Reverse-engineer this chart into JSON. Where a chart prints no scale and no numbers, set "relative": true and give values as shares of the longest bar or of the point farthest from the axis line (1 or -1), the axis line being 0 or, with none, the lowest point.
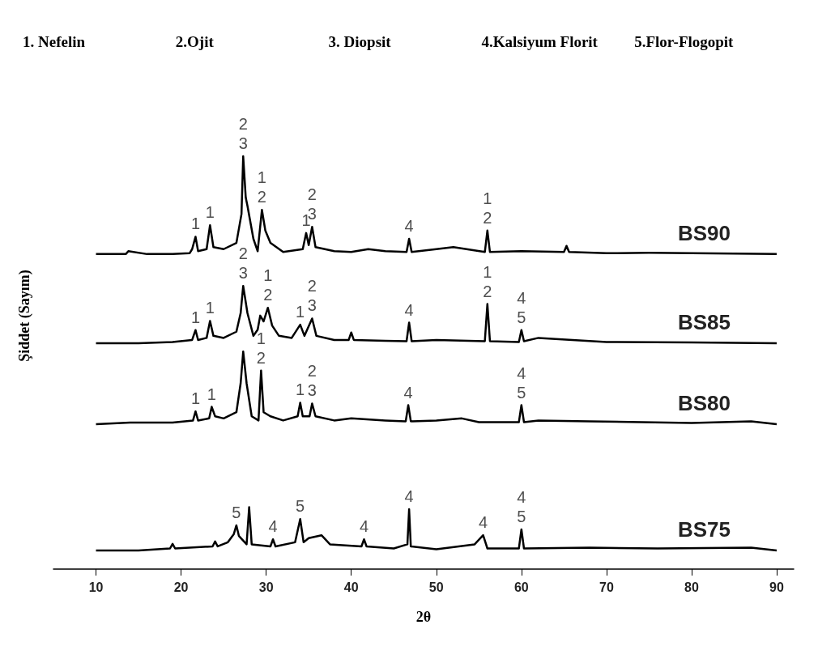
{
  "chart_data": {
    "type": "line",
    "relative": true,
    "xlabel": "2θ",
    "ylabel": "Şiddet (Sayım)",
    "xlim": [
      5,
      92
    ],
    "xticks": [
      10,
      20,
      30,
      40,
      50,
      60,
      70,
      80,
      90
    ],
    "grid": false,
    "legend": false,
    "marker": "none",
    "line_style": "solid",
    "series": [
      {
        "name": "BS90",
        "color": "#000000",
        "x": [
          10,
          13.5,
          13.8,
          16,
          19,
          21,
          21.3,
          21.7,
          22,
          23,
          23.4,
          23.8,
          25,
          26.5,
          27.1,
          27.3,
          27.6,
          27.8,
          28.5,
          29,
          29.5,
          29.9,
          30.5,
          32,
          34.3,
          34.7,
          35,
          35.4,
          35.8,
          38,
          40,
          42,
          44,
          46.5,
          46.8,
          47.1,
          50,
          52,
          55.7,
          56,
          56.3,
          60,
          65,
          65.3,
          65.6,
          70,
          75,
          80,
          85,
          90
        ],
        "values": [
          0.763,
          0.763,
          0.77,
          0.763,
          0.763,
          0.765,
          0.775,
          0.805,
          0.77,
          0.775,
          0.833,
          0.78,
          0.775,
          0.79,
          0.86,
          1.0,
          0.9,
          0.88,
          0.8,
          0.77,
          0.87,
          0.82,
          0.79,
          0.768,
          0.775,
          0.814,
          0.785,
          0.829,
          0.78,
          0.77,
          0.768,
          0.775,
          0.77,
          0.768,
          0.8,
          0.768,
          0.775,
          0.78,
          0.768,
          0.82,
          0.768,
          0.77,
          0.768,
          0.783,
          0.768,
          0.765,
          0.766,
          0.765,
          0.764,
          0.763
        ]
      },
      {
        "name": "BS85",
        "color": "#000000",
        "x": [
          10,
          15,
          19,
          21.3,
          21.7,
          22,
          23,
          23.4,
          23.8,
          25,
          26.5,
          27,
          27.3,
          27.8,
          28.5,
          29,
          29.3,
          29.7,
          30.2,
          30.7,
          31.5,
          33,
          34,
          34.5,
          35.4,
          35.9,
          38,
          39.7,
          40,
          40.3,
          44,
          46.5,
          46.8,
          47.1,
          50,
          55.7,
          56,
          56.3,
          59.7,
          60,
          60.3,
          62,
          70,
          80,
          90
        ],
        "values": [
          0.547,
          0.547,
          0.55,
          0.555,
          0.579,
          0.555,
          0.56,
          0.601,
          0.565,
          0.56,
          0.575,
          0.62,
          0.686,
          0.62,
          0.565,
          0.58,
          0.614,
          0.6,
          0.633,
          0.59,
          0.565,
          0.56,
          0.592,
          0.565,
          0.607,
          0.565,
          0.555,
          0.555,
          0.573,
          0.555,
          0.553,
          0.552,
          0.597,
          0.552,
          0.555,
          0.552,
          0.642,
          0.552,
          0.55,
          0.579,
          0.552,
          0.56,
          0.55,
          0.549,
          0.547
        ]
      },
      {
        "name": "BS80",
        "color": "#000000",
        "x": [
          10,
          14,
          19,
          21.4,
          21.7,
          22,
          23.3,
          23.6,
          24,
          25,
          26.5,
          27,
          27.3,
          27.7,
          28.3,
          29.1,
          29.4,
          29.7,
          30.5,
          32,
          33.7,
          34,
          34.3,
          35.1,
          35.4,
          35.8,
          38,
          40,
          44,
          46.4,
          46.7,
          47,
          50,
          53,
          55,
          59.7,
          60,
          60.3,
          62,
          68,
          80,
          87,
          90
        ],
        "values": [
          0.351,
          0.355,
          0.355,
          0.36,
          0.382,
          0.36,
          0.365,
          0.393,
          0.37,
          0.365,
          0.38,
          0.45,
          0.527,
          0.45,
          0.37,
          0.36,
          0.481,
          0.38,
          0.37,
          0.36,
          0.37,
          0.403,
          0.37,
          0.37,
          0.401,
          0.37,
          0.36,
          0.365,
          0.36,
          0.358,
          0.397,
          0.358,
          0.36,
          0.365,
          0.356,
          0.356,
          0.397,
          0.356,
          0.36,
          0.358,
          0.354,
          0.358,
          0.351
        ]
      },
      {
        "name": "BS75",
        "color": "#000000",
        "x": [
          10,
          15,
          18.7,
          19,
          19.3,
          23.7,
          24,
          24.3,
          25.5,
          26.2,
          26.5,
          26.8,
          27.7,
          28,
          28.3,
          30.5,
          30.8,
          31.1,
          33.4,
          34,
          34.4,
          35,
          36.5,
          37.5,
          41.2,
          41.5,
          41.8,
          45,
          46.6,
          46.8,
          47,
          50,
          54.5,
          55.5,
          56,
          59.7,
          60,
          60.3,
          68,
          76,
          87,
          90
        ],
        "values": [
          0.045,
          0.045,
          0.05,
          0.061,
          0.05,
          0.055,
          0.067,
          0.055,
          0.065,
          0.085,
          0.106,
          0.08,
          0.06,
          0.15,
          0.06,
          0.055,
          0.072,
          0.055,
          0.065,
          0.121,
          0.065,
          0.075,
          0.082,
          0.06,
          0.055,
          0.072,
          0.055,
          0.05,
          0.06,
          0.145,
          0.055,
          0.048,
          0.06,
          0.082,
          0.05,
          0.05,
          0.096,
          0.05,
          0.052,
          0.05,
          0.052,
          0.045
        ]
      }
    ],
    "annotations": [
      "1. Nefelin",
      "2.Ojit",
      "3. Diopsit",
      "4.Kalsiyum Florit",
      "5.Flor-Flogopit",
      {
        "text": "1",
        "x": 21.7,
        "y": 0.805
      },
      {
        "text": "1",
        "x": 23.4,
        "y": 0.833
      },
      {
        "text": "2\n3",
        "x": 27.3,
        "y": 1.0
      },
      {
        "text": "1\n2",
        "x": 29.5,
        "y": 0.87
      },
      {
        "text": "1",
        "x": 34.7,
        "y": 0.814
      },
      {
        "text": "2\n3",
        "x": 35.4,
        "y": 0.829
      },
      {
        "text": "4",
        "x": 46.8,
        "y": 0.8
      },
      {
        "text": "1\n2",
        "x": 56,
        "y": 0.82
      },
      {
        "text": "1",
        "x": 21.7,
        "y": 0.579
      },
      {
        "text": "1",
        "x": 23.4,
        "y": 0.601
      },
      {
        "text": "2\n3",
        "x": 27.3,
        "y": 0.686
      },
      {
        "text": "1\n2",
        "x": 30.2,
        "y": 0.633
      },
      {
        "text": "1",
        "x": 34,
        "y": 0.592
      },
      {
        "text": "2\n3",
        "x": 35.4,
        "y": 0.607
      },
      {
        "text": "4",
        "x": 46.8,
        "y": 0.597
      },
      {
        "text": "1\n2",
        "x": 56,
        "y": 0.642
      },
      {
        "text": "4\n5",
        "x": 60,
        "y": 0.579
      },
      {
        "text": "1",
        "x": 21.7,
        "y": 0.382
      },
      {
        "text": "1",
        "x": 23.6,
        "y": 0.393
      },
      {
        "text": "1\n2",
        "x": 29.4,
        "y": 0.481
      },
      {
        "text": "1",
        "x": 34,
        "y": 0.403
      },
      {
        "text": "2\n3",
        "x": 35.4,
        "y": 0.401
      },
      {
        "text": "4",
        "x": 46.7,
        "y": 0.397
      },
      {
        "text": "4\n5",
        "x": 60,
        "y": 0.397
      },
      {
        "text": "5",
        "x": 26.5,
        "y": 0.106
      },
      {
        "text": "4",
        "x": 30.8,
        "y": 0.072
      },
      {
        "text": "5",
        "x": 34,
        "y": 0.121
      },
      {
        "text": "4",
        "x": 41.5,
        "y": 0.072
      },
      {
        "text": "4",
        "x": 46.8,
        "y": 0.145
      },
      {
        "text": "4",
        "x": 55.5,
        "y": 0.082
      },
      {
        "text": "4\n5",
        "x": 60,
        "y": 0.096
      }
    ]
  }
}
